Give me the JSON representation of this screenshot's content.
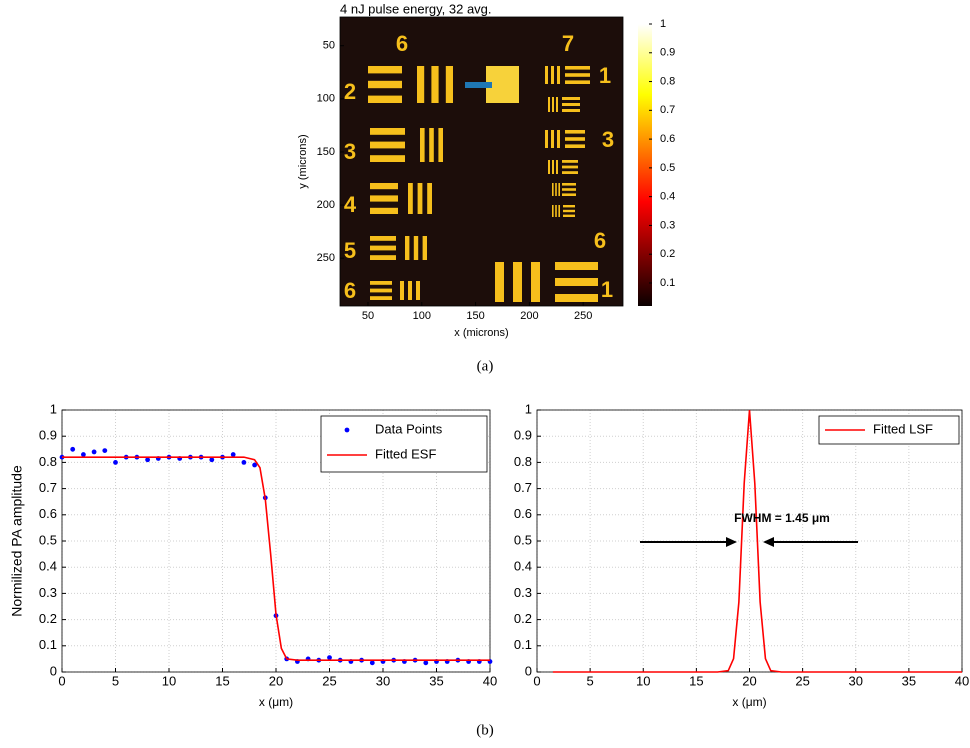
{
  "chart_data": [
    {
      "type": "image",
      "title": "4 nJ pulse energy, 32 avg.",
      "xlabel": "x (microns)",
      "ylabel": "y (microns)",
      "xlim": [
        24,
        287
      ],
      "xticks": [
        50,
        100,
        150,
        200,
        250
      ],
      "ylim": [
        23,
        295
      ],
      "yticks": [
        50,
        100,
        150,
        200,
        250
      ],
      "y_reversed": true,
      "colormap": "hot",
      "clim": [
        0.02,
        1
      ],
      "colorbar_ticks": [
        0.1,
        0.2,
        0.3,
        0.4,
        0.5,
        0.6,
        0.7,
        0.8,
        0.9,
        1
      ],
      "annotations": [
        "6",
        "7",
        "1",
        "2",
        "3",
        "3",
        "4",
        "5",
        "6",
        "6",
        "1"
      ]
    },
    {
      "type": "line",
      "xlabel": "x (μm)",
      "ylabel": "Normilized PA amplitude",
      "xlim": [
        0,
        40
      ],
      "xticks": [
        0,
        5,
        10,
        15,
        20,
        25,
        30,
        35,
        40
      ],
      "ylim": [
        0,
        1
      ],
      "yticks": [
        0,
        0.1,
        0.2,
        0.3,
        0.4,
        0.5,
        0.6,
        0.7,
        0.8,
        0.9,
        1
      ],
      "grid": true,
      "legend": "upper right",
      "series": [
        {
          "name": "Data Points",
          "style": "markers",
          "color": "#0000ff",
          "x": [
            0,
            1,
            2,
            3,
            4,
            5,
            6,
            7,
            8,
            9,
            10,
            11,
            12,
            13,
            14,
            15,
            16,
            17,
            18,
            19,
            20,
            21,
            22,
            23,
            24,
            25,
            26,
            27,
            28,
            29,
            30,
            31,
            32,
            33,
            34,
            35,
            36,
            37,
            38,
            39,
            40
          ],
          "values": [
            0.82,
            0.85,
            0.83,
            0.84,
            0.845,
            0.8,
            0.82,
            0.82,
            0.81,
            0.815,
            0.82,
            0.815,
            0.82,
            0.82,
            0.81,
            0.82,
            0.83,
            0.8,
            0.79,
            0.665,
            0.215,
            0.05,
            0.04,
            0.05,
            0.045,
            0.055,
            0.045,
            0.04,
            0.045,
            0.035,
            0.04,
            0.045,
            0.04,
            0.045,
            0.035,
            0.04,
            0.04,
            0.045,
            0.04,
            0.04,
            0.04
          ]
        },
        {
          "name": "Fitted ESF",
          "style": "line",
          "color": "#ff0000",
          "x": [
            0,
            17,
            18,
            18.5,
            19,
            19.5,
            20,
            20.5,
            21,
            22,
            40
          ],
          "values": [
            0.82,
            0.82,
            0.81,
            0.78,
            0.66,
            0.45,
            0.22,
            0.09,
            0.05,
            0.045,
            0.045
          ]
        }
      ]
    },
    {
      "type": "line",
      "xlabel": "x (μm)",
      "xlim": [
        0,
        40
      ],
      "xticks": [
        0,
        5,
        10,
        15,
        20,
        25,
        30,
        35,
        40
      ],
      "ylim": [
        0,
        1
      ],
      "yticks": [
        0,
        0.1,
        0.2,
        0.3,
        0.4,
        0.5,
        0.6,
        0.7,
        0.8,
        0.9,
        1
      ],
      "grid": true,
      "legend": "upper right",
      "annotation": "FWHM = 1.45 μm",
      "series": [
        {
          "name": "Fitted LSF",
          "style": "line",
          "color": "#ff0000",
          "x": [
            1.5,
            17,
            18,
            18.5,
            19,
            19.5,
            20,
            20.5,
            21,
            21.5,
            22,
            23,
            40
          ],
          "values": [
            0,
            0,
            0.005,
            0.051,
            0.267,
            0.72,
            1,
            0.72,
            0.267,
            0.051,
            0.005,
            0,
            0
          ]
        }
      ]
    }
  ],
  "captions": [
    "(a)",
    "(b)"
  ]
}
